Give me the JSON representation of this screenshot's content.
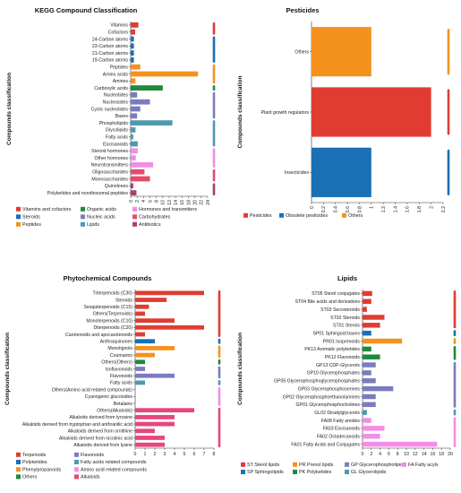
{
  "charts": [
    {
      "id": "kegg",
      "title": "KEGG Compound Classification",
      "ylabel": "Compounds classification",
      "type": "bar",
      "orientation": "horizontal",
      "xlim": [
        0,
        24
      ],
      "ticks": [
        "0",
        "2",
        "4",
        "6",
        "8",
        "10",
        "12",
        "14",
        "16",
        "18",
        "20",
        "22",
        "24"
      ],
      "tick_rotate": true,
      "legend_cols": 3,
      "groups": [
        {
          "name": "Vitamins and cofactors",
          "color": "#e03c31"
        },
        {
          "name": "Organic acids",
          "color": "#1e8a3c"
        },
        {
          "name": "Hormones and transmitters",
          "color": "#f28ee6"
        },
        {
          "name": "Steroids",
          "color": "#1a6fb5"
        },
        {
          "name": "Nucleic acids",
          "color": "#7b7bbf"
        },
        {
          "name": "Carbohydrates",
          "color": "#e44b6a"
        },
        {
          "name": "Peptides",
          "color": "#f5921e"
        },
        {
          "name": "Lipids",
          "color": "#4e9aae"
        },
        {
          "name": "Antibiotics",
          "color": "#a8406a"
        }
      ],
      "bars": [
        {
          "label": "Vitamins",
          "value": 2.4,
          "group": 0
        },
        {
          "label": "Cofactors",
          "value": 1.4,
          "group": 0
        },
        {
          "label": "24-Carbon atoms",
          "value": 1,
          "group": 3
        },
        {
          "label": "23-Carbon atoms",
          "value": 1,
          "group": 3
        },
        {
          "label": "21-Carbon atoms",
          "value": 1,
          "group": 3
        },
        {
          "label": "19-Carbon atoms",
          "value": 1,
          "group": 3
        },
        {
          "label": "Peptides",
          "value": 3,
          "group": 6
        },
        {
          "label": "Amino acids",
          "value": 21,
          "group": 6
        },
        {
          "label": "Amines",
          "value": 1.5,
          "group": 6
        },
        {
          "label": "Carboxylic acids",
          "value": 10,
          "group": 1
        },
        {
          "label": "Nucleotides",
          "value": 2,
          "group": 4
        },
        {
          "label": "Nucleosides",
          "value": 6,
          "group": 4
        },
        {
          "label": "Cyclic nucleotides",
          "value": 3,
          "group": 4
        },
        {
          "label": "Bases",
          "value": 2,
          "group": 4
        },
        {
          "label": "Phospholipids",
          "value": 13,
          "group": 7
        },
        {
          "label": "Glycolipids",
          "value": 1.5,
          "group": 7
        },
        {
          "label": "Fatty acids",
          "value": 0.8,
          "group": 7
        },
        {
          "label": "Eicosanoids",
          "value": 2.2,
          "group": 7
        },
        {
          "label": "Steroid hormones",
          "value": 2.2,
          "group": 2
        },
        {
          "label": "Other hormones",
          "value": 1.6,
          "group": 2
        },
        {
          "label": "Neurotransmitters",
          "value": 7,
          "group": 2
        },
        {
          "label": "Oligosaccharides",
          "value": 4.3,
          "group": 5
        },
        {
          "label": "Monosaccharides",
          "value": 6,
          "group": 5
        },
        {
          "label": "Quinolones",
          "value": 0.8,
          "group": 8
        },
        {
          "label": "Polyketides and nonribosomal peptides",
          "value": 1.8,
          "group": 8
        }
      ]
    },
    {
      "id": "pesticides",
      "title": "Pesticides",
      "ylabel": "Compounds classification",
      "type": "bar",
      "orientation": "horizontal",
      "xlim": [
        0,
        2.2
      ],
      "ticks": [
        "0",
        "0.2",
        "0.4",
        "0.6",
        "0.8",
        "1",
        "1.2",
        "1.4",
        "1.6",
        "1.8",
        "2",
        "2.2"
      ],
      "tick_rotate": true,
      "legend_cols": 3,
      "groups": [
        {
          "name": "Pesticides",
          "color": "#e03c31"
        },
        {
          "name": "Obsolete pesticides",
          "color": "#1a6fb5"
        },
        {
          "name": "Others",
          "color": "#f5921e"
        }
      ],
      "bars": [
        {
          "label": "Others",
          "value": 1,
          "group": 2
        },
        {
          "label": "Plant growth regulators",
          "value": 2,
          "group": 0
        },
        {
          "label": "Insecticides",
          "value": 1,
          "group": 1
        }
      ]
    },
    {
      "id": "phyto",
      "title": "Phytochemical Compounds",
      "ylabel": "Compounds classification",
      "type": "bar",
      "orientation": "horizontal",
      "xlim": [
        0,
        8
      ],
      "ticks": [
        "0",
        "1",
        "2",
        "3",
        "4",
        "5",
        "6",
        "7",
        "8"
      ],
      "tick_rotate": false,
      "legend_cols": 2,
      "groups": [
        {
          "name": "Terpenoids",
          "color": "#e03c31"
        },
        {
          "name": "Flavonoids",
          "color": "#7b7bbf"
        },
        {
          "name": "Polyketides",
          "color": "#1a6fb5"
        },
        {
          "name": "Fatty acids related compounds",
          "color": "#4e9aae"
        },
        {
          "name": "Phenylpropanoids",
          "color": "#f5921e"
        },
        {
          "name": "Amino acid related compounds",
          "color": "#f28ee6"
        },
        {
          "name": "Others",
          "color": "#1e8a3c"
        },
        {
          "name": "Alkaloids",
          "color": "#e8457c"
        }
      ],
      "bars": [
        {
          "label": "Triterpenoids (C30)",
          "value": 7,
          "group": 0
        },
        {
          "label": "Steroids",
          "value": 3.2,
          "group": 0
        },
        {
          "label": "Sesquiterpenoids (C15)",
          "value": 1.4,
          "group": 0
        },
        {
          "label": "Others(Terpenoids)",
          "value": 1,
          "group": 0
        },
        {
          "label": "Monoterpenoids (C10)",
          "value": 4,
          "group": 0
        },
        {
          "label": "Diterpenoids (C20)",
          "value": 7,
          "group": 0
        },
        {
          "label": "Carotenoids and apocarotenoids",
          "value": 1,
          "group": 0
        },
        {
          "label": "Anthraquinones",
          "value": 2,
          "group": 2
        },
        {
          "label": "Monolignols",
          "value": 4,
          "group": 4
        },
        {
          "label": "Coumarins",
          "value": 2,
          "group": 4
        },
        {
          "label": "Others(Others)",
          "value": 1,
          "group": 6
        },
        {
          "label": "Isoflavonoids",
          "value": 1,
          "group": 1
        },
        {
          "label": "Flavonoids",
          "value": 4,
          "group": 1
        },
        {
          "label": "Fatty acids",
          "value": 1,
          "group": 3
        },
        {
          "label": "Others(Amino acid related compounds)",
          "value": 0,
          "group": 5
        },
        {
          "label": "Cyanogenic glucosides",
          "value": 0,
          "group": 5
        },
        {
          "label": "Betalains",
          "value": 0,
          "group": 5
        },
        {
          "label": "Others(Alkaloids)",
          "value": 6,
          "group": 7
        },
        {
          "label": "Alkaloids derived from tyrosine",
          "value": 4,
          "group": 7
        },
        {
          "label": "Alkaloids derived from tryptophan and anthranilic acid",
          "value": 4,
          "group": 7
        },
        {
          "label": "Alkaloids derived from ornithine",
          "value": 2,
          "group": 7
        },
        {
          "label": "Alkaloids derived from nicotinic acid",
          "value": 3,
          "group": 7
        },
        {
          "label": "Alkaloids derived from lysine",
          "value": 3,
          "group": 7
        }
      ]
    },
    {
      "id": "lipids",
      "title": "Lipids",
      "ylabel": "Compounds classification",
      "type": "bar",
      "orientation": "horizontal",
      "xlim": [
        0,
        20
      ],
      "ticks": [
        "0",
        "2",
        "4",
        "6",
        "8",
        "10",
        "12",
        "14",
        "16",
        "18",
        "20"
      ],
      "tick_rotate": false,
      "legend_cols": 4,
      "groups": [
        {
          "name": "ST Sterol lipids",
          "color": "#e03c31"
        },
        {
          "name": "PR Prenol lipids",
          "color": "#f5921e"
        },
        {
          "name": "GP Glycerophospholipids",
          "color": "#7b7bbf"
        },
        {
          "name": "FA Fatty acyls",
          "color": "#f28ee6"
        },
        {
          "name": "SP Sphingolipids",
          "color": "#1a6fb5"
        },
        {
          "name": "PK Polyketides",
          "color": "#1e8a3c"
        },
        {
          "name": "GL Glycerolipids",
          "color": "#4e9aae"
        }
      ],
      "bars": [
        {
          "label": "ST05 Sterol conjugates",
          "value": 2.2,
          "group": 0
        },
        {
          "label": "ST04 Bile acids and derivatives",
          "value": 2,
          "group": 0
        },
        {
          "label": "ST03 Secosteroids",
          "value": 1,
          "group": 0
        },
        {
          "label": "ST02 Steroids",
          "value": 5,
          "group": 0
        },
        {
          "label": "ST01 Sterols",
          "value": 4,
          "group": 0
        },
        {
          "label": "SP01 Sphingoid bases",
          "value": 2,
          "group": 4
        },
        {
          "label": "PR01 Isoprenoids",
          "value": 9,
          "group": 1
        },
        {
          "label": "PK13 Aromatic polyketides",
          "value": 2,
          "group": 5
        },
        {
          "label": "PK12 Flavonoids",
          "value": 4,
          "group": 5
        },
        {
          "label": "GP13 CDP-Glycerols",
          "value": 3,
          "group": 2
        },
        {
          "label": "GP10 Glycerophosphates",
          "value": 2,
          "group": 2
        },
        {
          "label": "GP05 Glycerophosphoglycerophosphates",
          "value": 3,
          "group": 2
        },
        {
          "label": "GP03 Glycerophosphoserines",
          "value": 7,
          "group": 2
        },
        {
          "label": "GP02 Glycerophosphoethanolamines",
          "value": 3,
          "group": 2
        },
        {
          "label": "GP01 Glycerophosphocholines",
          "value": 3,
          "group": 2
        },
        {
          "label": "GL02 Diradylglycerols",
          "value": 1,
          "group": 6
        },
        {
          "label": "FA08 Fatty amides",
          "value": 2,
          "group": 3
        },
        {
          "label": "FA03 Eicosanoids",
          "value": 5,
          "group": 3
        },
        {
          "label": "FA02 Octadecanoids",
          "value": 4,
          "group": 3
        },
        {
          "label": "FA01 Fatty Acids and Conjugates",
          "value": 17,
          "group": 3
        }
      ]
    }
  ]
}
